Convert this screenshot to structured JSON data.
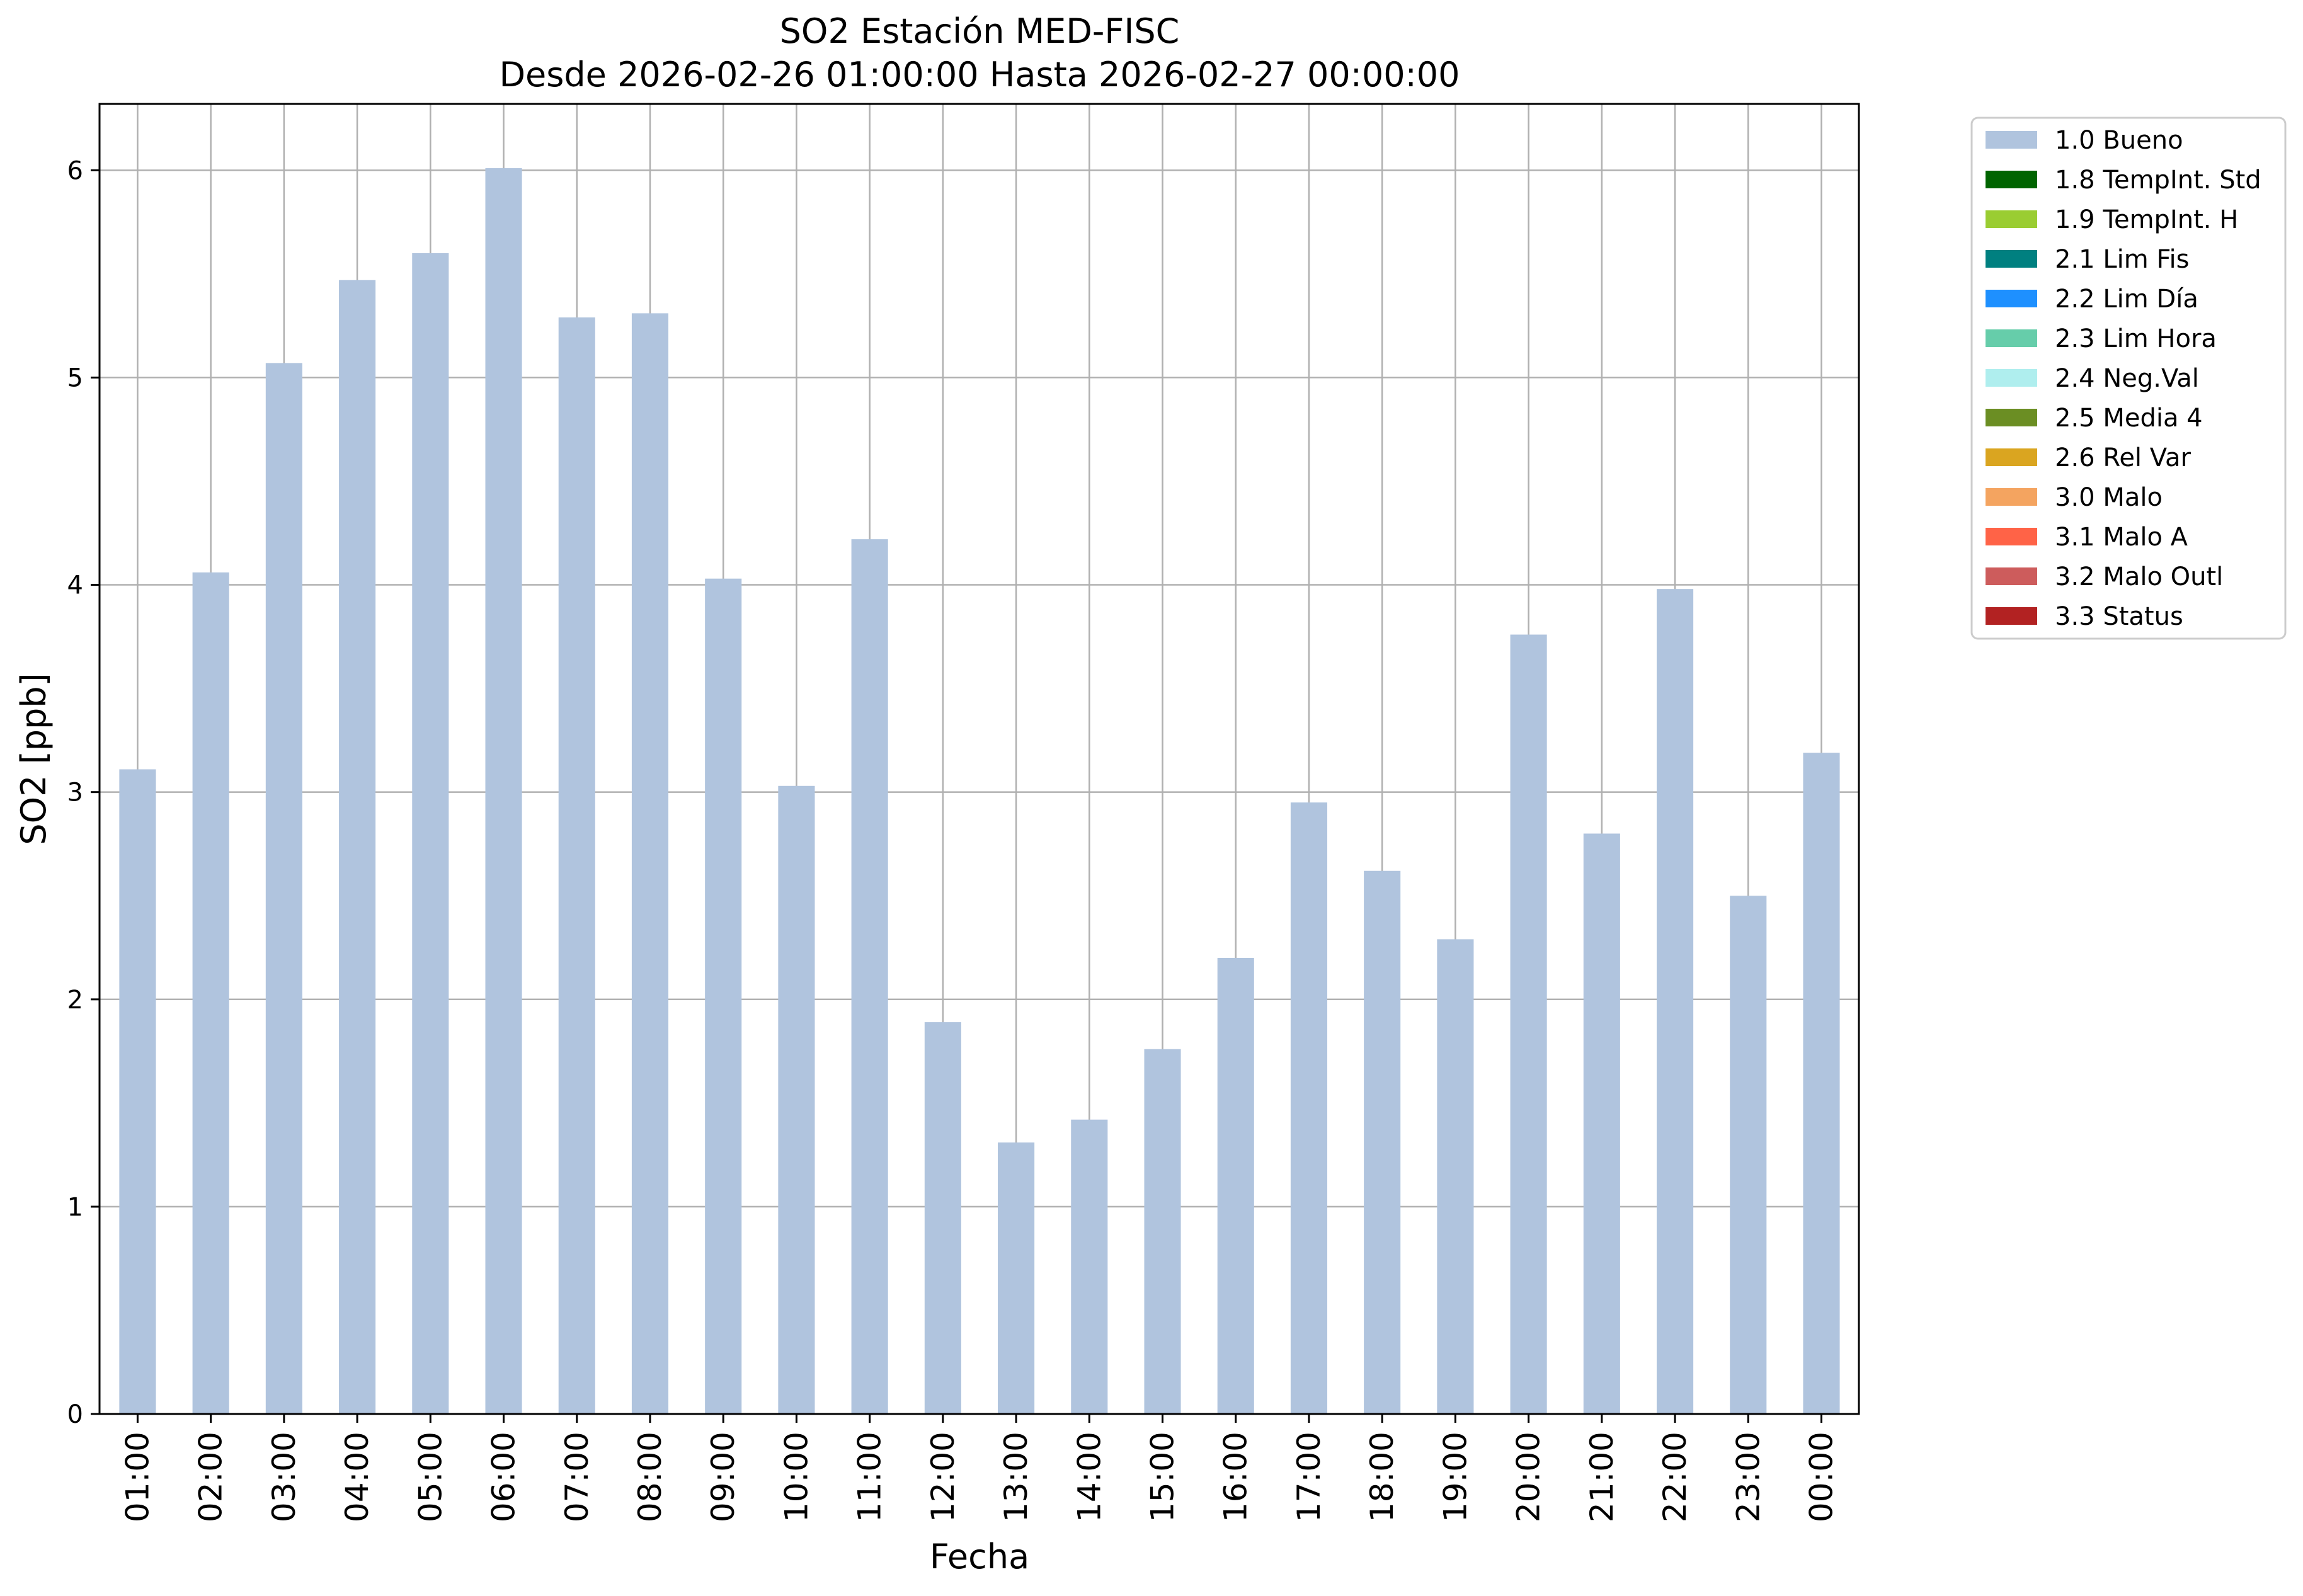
{
  "chart_data": {
    "type": "bar",
    "title": "SO2 Estación MED-FISC",
    "subtitle": "Desde 2026-02-26 01:00:00 Hasta 2026-02-27 00:00:00",
    "xlabel": "Fecha",
    "ylabel": "SO2 [ppb]",
    "ylim": [
      0,
      6.32
    ],
    "yticks": [
      "0",
      "1",
      "2",
      "3",
      "4",
      "5",
      "6"
    ],
    "grid": true,
    "legend_position": "outside-top-right",
    "categories": [
      "01:00",
      "02:00",
      "03:00",
      "04:00",
      "05:00",
      "06:00",
      "07:00",
      "08:00",
      "09:00",
      "10:00",
      "11:00",
      "12:00",
      "13:00",
      "14:00",
      "15:00",
      "16:00",
      "17:00",
      "18:00",
      "19:00",
      "20:00",
      "21:00",
      "22:00",
      "23:00",
      "00:00"
    ],
    "series": [
      {
        "name": "1.0 Bueno",
        "color": "#b0c4de",
        "values": [
          3.11,
          4.06,
          5.07,
          5.47,
          5.6,
          6.01,
          5.29,
          5.31,
          4.03,
          3.03,
          4.22,
          1.89,
          1.31,
          1.42,
          1.76,
          2.2,
          2.95,
          2.62,
          2.29,
          3.76,
          2.8,
          3.98,
          2.5,
          3.19
        ]
      }
    ],
    "legend": [
      {
        "label": "1.0 Bueno",
        "color": "#b0c4de"
      },
      {
        "label": "1.8 TempInt. Std",
        "color": "#006400"
      },
      {
        "label": "1.9 TempInt. H",
        "color": "#9acd32"
      },
      {
        "label": "2.1 Lim Fis",
        "color": "#008080"
      },
      {
        "label": "2.2 Lim Día",
        "color": "#1e90ff"
      },
      {
        "label": "2.3 Lim Hora",
        "color": "#66cdaa"
      },
      {
        "label": "2.4 Neg.Val",
        "color": "#afeeee"
      },
      {
        "label": "2.5 Media 4",
        "color": "#6b8e23"
      },
      {
        "label": "2.6 Rel Var",
        "color": "#daa520"
      },
      {
        "label": "3.0 Malo",
        "color": "#f4a460"
      },
      {
        "label": "3.1 Malo A",
        "color": "#ff6347"
      },
      {
        "label": "3.2 Malo Outl",
        "color": "#cd5c5c"
      },
      {
        "label": "3.3 Status",
        "color": "#b22222"
      }
    ]
  }
}
